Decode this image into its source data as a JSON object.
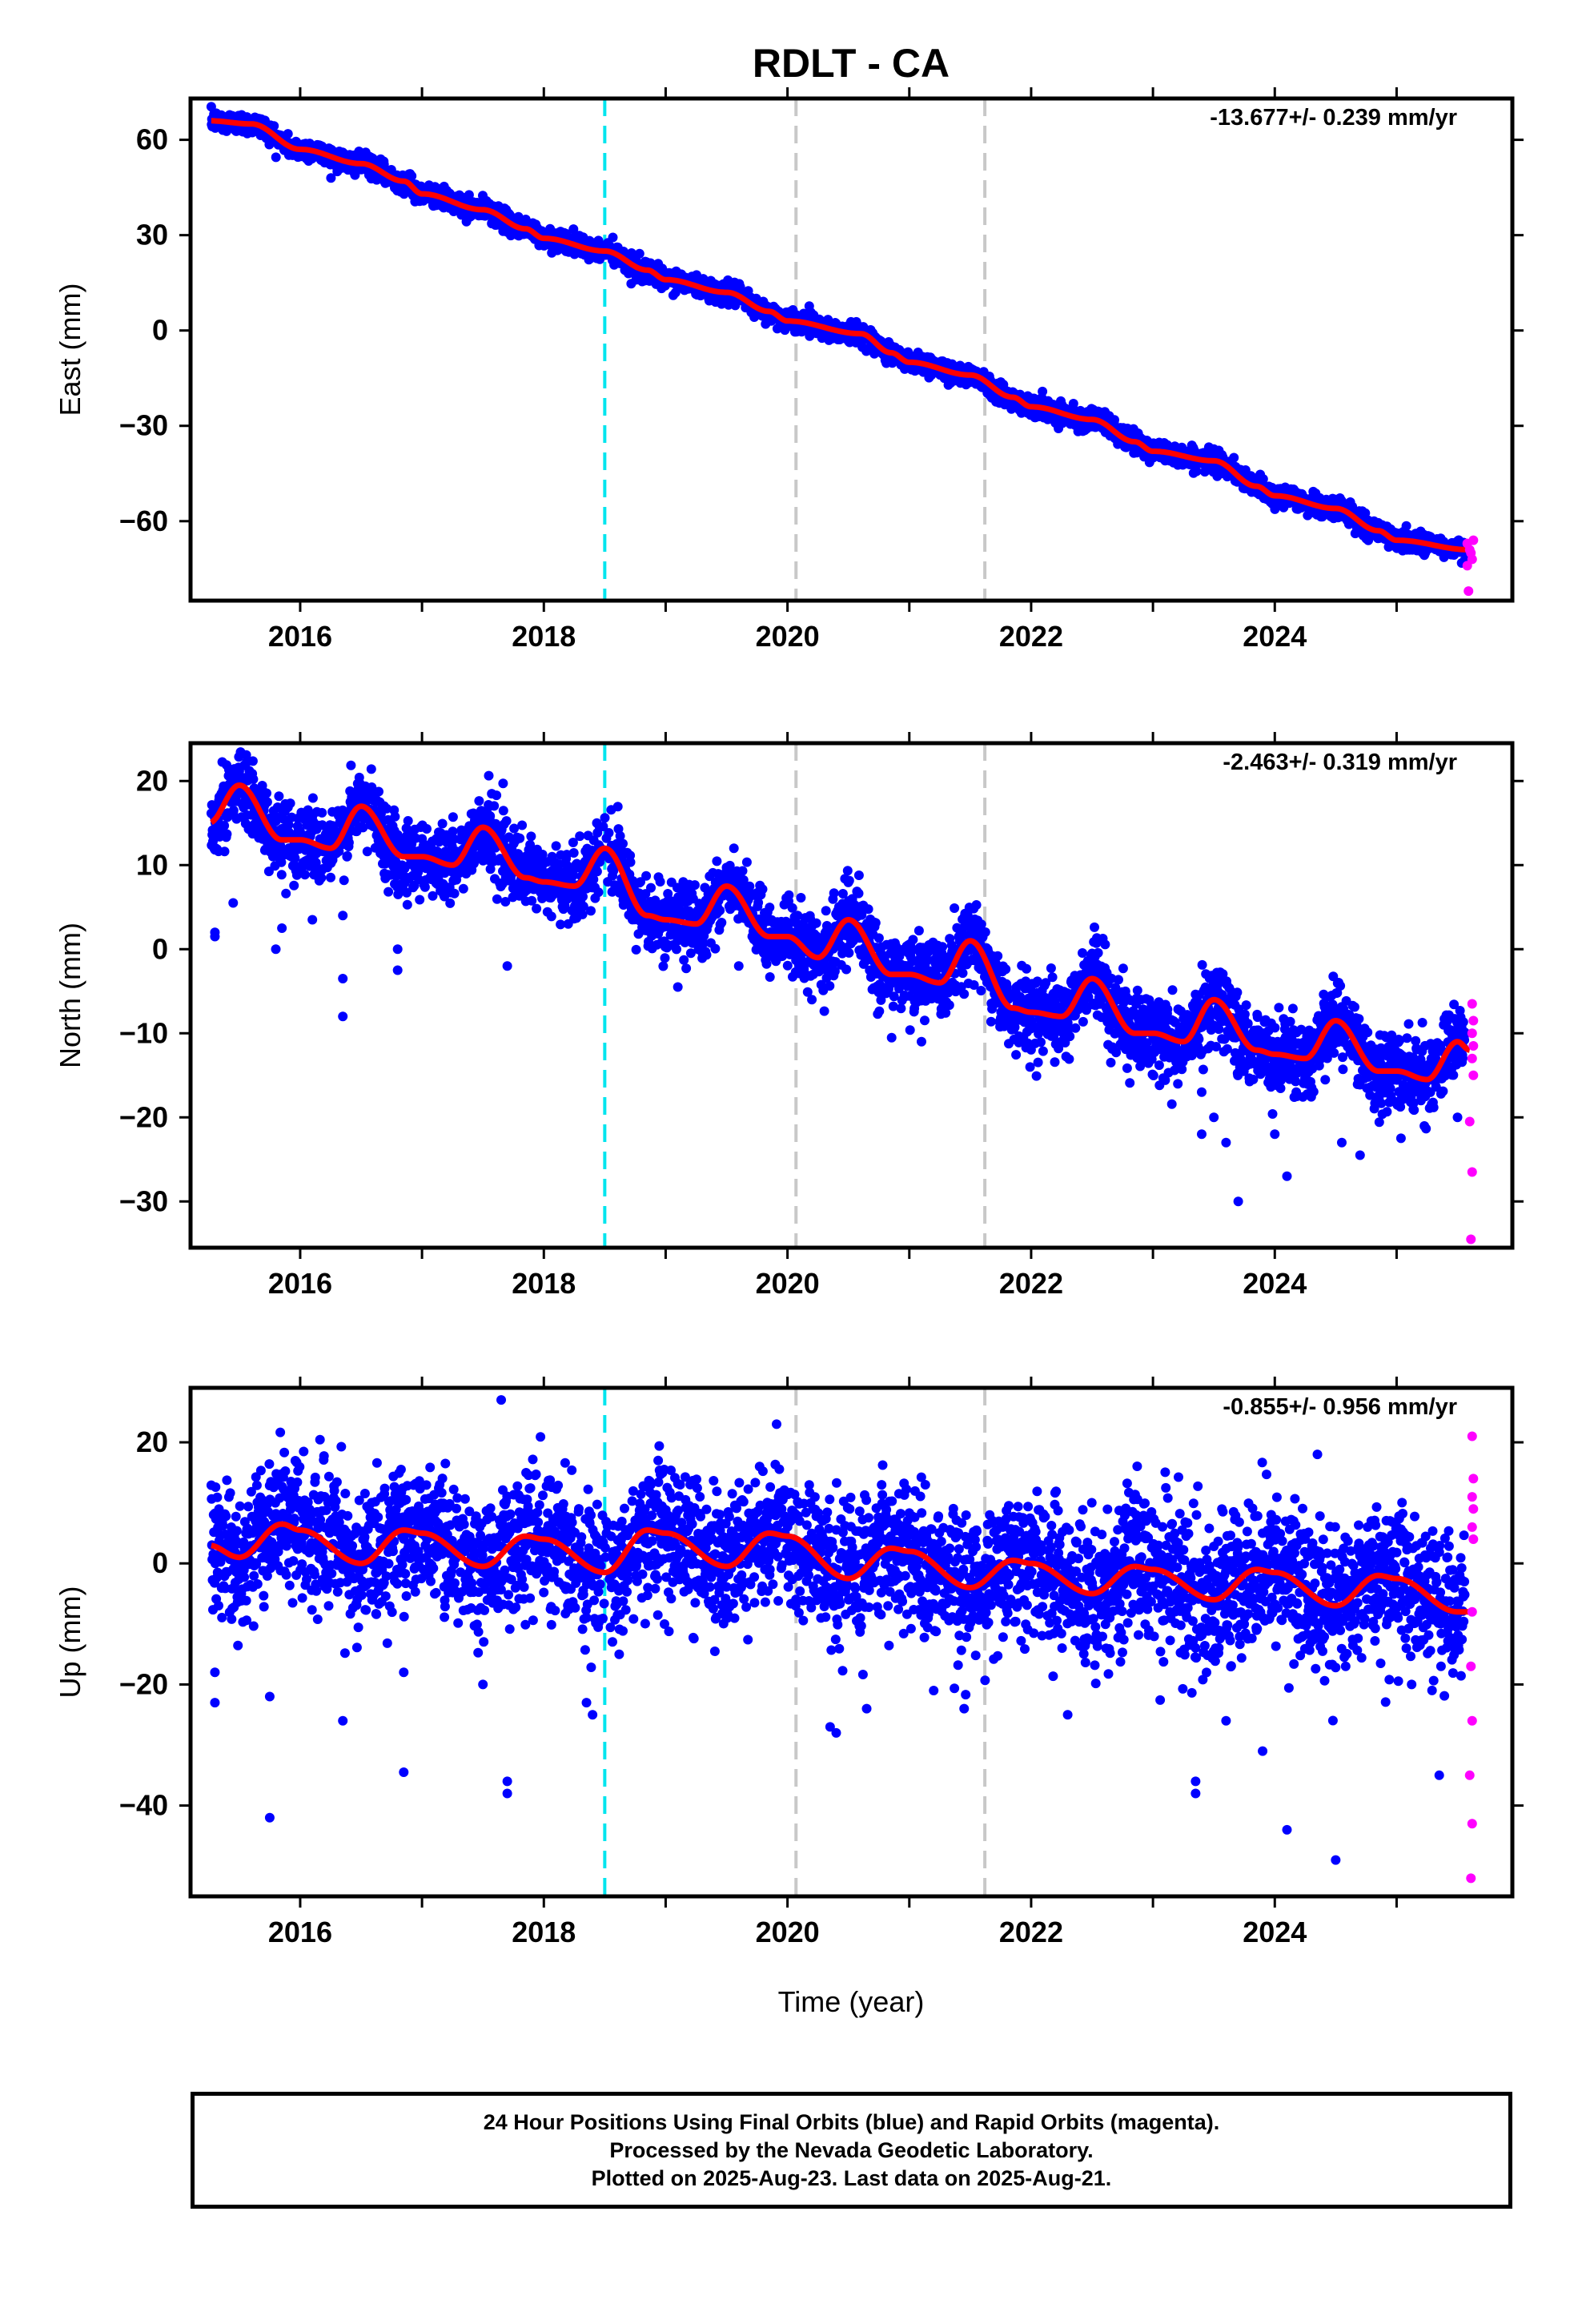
{
  "title": "RDLT - CA",
  "colors": {
    "final_orbits": "#0000ff",
    "rapid_orbits": "#ff00ff",
    "model_fit": "#ff0000",
    "antenna_change_line": "#00e5ee",
    "event_line": "#c8c8c8"
  },
  "x_axis": {
    "label": "Time (year)",
    "range": [
      2015.1,
      2025.95
    ],
    "ticks": [
      "2016",
      "2018",
      "2020",
      "2022",
      "2024"
    ],
    "tick_values": [
      2016,
      2018,
      2020,
      2022,
      2024
    ]
  },
  "vertical_lines": [
    {
      "x": 2018.5,
      "style": "cyan-dashed"
    },
    {
      "x": 2020.07,
      "style": "gray-dashed"
    },
    {
      "x": 2021.62,
      "style": "gray-dashed"
    }
  ],
  "chart_data": [
    {
      "type": "scatter",
      "panel": "east",
      "ylabel": "East (mm)",
      "ylim": [
        -85,
        73
      ],
      "yticks": [
        60,
        30,
        0,
        -30,
        -60
      ],
      "ytick_labels": [
        "60",
        "30",
        "0",
        "−30",
        "−60"
      ],
      "annotation": "-13.677+/- 0.239 mm/yr",
      "trend_rate": -13.677,
      "model_points": [
        [
          2015.25,
          66
        ],
        [
          2015.6,
          65
        ],
        [
          2016.0,
          57
        ],
        [
          2016.5,
          52.5
        ],
        [
          2016.85,
          47
        ],
        [
          2017.0,
          43
        ],
        [
          2017.5,
          38
        ],
        [
          2017.85,
          32
        ],
        [
          2018.0,
          29
        ],
        [
          2018.5,
          25
        ],
        [
          2018.85,
          19
        ],
        [
          2019.0,
          16
        ],
        [
          2019.5,
          12
        ],
        [
          2019.85,
          6
        ],
        [
          2020.0,
          3
        ],
        [
          2020.6,
          -1
        ],
        [
          2020.85,
          -7
        ],
        [
          2021.0,
          -10
        ],
        [
          2021.5,
          -14
        ],
        [
          2021.85,
          -21
        ],
        [
          2022.0,
          -24
        ],
        [
          2022.5,
          -28
        ],
        [
          2022.85,
          -35
        ],
        [
          2023.0,
          -38
        ],
        [
          2023.5,
          -41
        ],
        [
          2023.85,
          -49
        ],
        [
          2024.0,
          -52
        ],
        [
          2024.5,
          -56
        ],
        [
          2024.85,
          -63
        ],
        [
          2025.0,
          -66
        ],
        [
          2025.6,
          -69
        ]
      ],
      "scatter_noise": 1.6,
      "outliers": [],
      "rapid_points": [
        [
          2025.58,
          -67
        ],
        [
          2025.6,
          -69
        ],
        [
          2025.62,
          -72
        ],
        [
          2025.58,
          -74
        ],
        [
          2025.61,
          -70
        ],
        [
          2025.63,
          -66
        ],
        [
          2025.59,
          -82
        ]
      ]
    },
    {
      "type": "scatter",
      "panel": "north",
      "ylabel": "North (mm)",
      "ylim": [
        -35.5,
        24.5
      ],
      "yticks": [
        20,
        10,
        0,
        -10,
        -20,
        -30
      ],
      "ytick_labels": [
        "20",
        "10",
        "0",
        "−10",
        "−20",
        "−30"
      ],
      "annotation": "-2.463+/- 0.319 mm/yr",
      "trend_rate": -2.463,
      "model_points": [
        [
          2015.25,
          15
        ],
        [
          2015.5,
          19.5
        ],
        [
          2015.85,
          13
        ],
        [
          2016.0,
          13
        ],
        [
          2016.25,
          12
        ],
        [
          2016.5,
          17
        ],
        [
          2016.85,
          11
        ],
        [
          2017.0,
          11
        ],
        [
          2017.25,
          10
        ],
        [
          2017.5,
          14.5
        ],
        [
          2017.85,
          8.5
        ],
        [
          2018.0,
          8
        ],
        [
          2018.25,
          7.5
        ],
        [
          2018.5,
          12
        ],
        [
          2018.85,
          4
        ],
        [
          2019.0,
          3.5
        ],
        [
          2019.25,
          3
        ],
        [
          2019.5,
          7.5
        ],
        [
          2019.85,
          1.5
        ],
        [
          2020.0,
          1.5
        ],
        [
          2020.25,
          -1
        ],
        [
          2020.5,
          3.5
        ],
        [
          2020.85,
          -3
        ],
        [
          2021.0,
          -3
        ],
        [
          2021.25,
          -4
        ],
        [
          2021.5,
          1
        ],
        [
          2021.85,
          -7
        ],
        [
          2022.0,
          -7.5
        ],
        [
          2022.25,
          -8
        ],
        [
          2022.5,
          -3.5
        ],
        [
          2022.85,
          -10
        ],
        [
          2023.0,
          -10
        ],
        [
          2023.25,
          -11
        ],
        [
          2023.5,
          -6
        ],
        [
          2023.85,
          -12
        ],
        [
          2024.0,
          -12.5
        ],
        [
          2024.25,
          -13
        ],
        [
          2024.5,
          -8.5
        ],
        [
          2024.85,
          -14.5
        ],
        [
          2025.0,
          -14.5
        ],
        [
          2025.25,
          -15.5
        ],
        [
          2025.5,
          -11
        ],
        [
          2025.6,
          -12
        ]
      ],
      "scatter_noise": 2.2,
      "outliers": [
        [
          2015.3,
          2
        ],
        [
          2015.3,
          1.5
        ],
        [
          2015.45,
          5.5
        ],
        [
          2015.8,
          0
        ],
        [
          2015.85,
          2.5
        ],
        [
          2016.1,
          3.5
        ],
        [
          2016.35,
          4
        ],
        [
          2016.35,
          -3.5
        ],
        [
          2016.35,
          -8
        ],
        [
          2016.8,
          0
        ],
        [
          2016.8,
          -2.5
        ],
        [
          2017.7,
          -2
        ],
        [
          2018.2,
          3
        ],
        [
          2019.1,
          -4.5
        ],
        [
          2019.6,
          -2
        ],
        [
          2020.2,
          -6
        ],
        [
          2021.1,
          -11
        ],
        [
          2023.4,
          -17
        ],
        [
          2023.4,
          -22
        ],
        [
          2023.5,
          -20
        ],
        [
          2023.7,
          -30
        ],
        [
          2023.6,
          -23
        ],
        [
          2024.0,
          -22
        ],
        [
          2024.1,
          -27
        ],
        [
          2024.55,
          -23
        ],
        [
          2024.7,
          -24.5
        ],
        [
          2025.2,
          -18
        ],
        [
          2025.5,
          -20
        ]
      ],
      "rapid_points": [
        [
          2025.62,
          -6.5
        ],
        [
          2025.63,
          -8.5
        ],
        [
          2025.62,
          -10
        ],
        [
          2025.63,
          -11.5
        ],
        [
          2025.62,
          -13
        ],
        [
          2025.63,
          -15
        ],
        [
          2025.6,
          -20.5
        ],
        [
          2025.62,
          -26.5
        ],
        [
          2025.61,
          -34.5
        ]
      ]
    },
    {
      "type": "scatter",
      "panel": "up",
      "ylabel": "Up (mm)",
      "ylim": [
        -55,
        29
      ],
      "yticks": [
        20,
        0,
        -20,
        -40
      ],
      "ytick_labels": [
        "20",
        "0",
        "−20",
        "−40"
      ],
      "annotation": "-0.855+/- 0.956 mm/yr",
      "trend_rate": -0.855,
      "model_points": [
        [
          2015.25,
          3
        ],
        [
          2015.5,
          1
        ],
        [
          2015.85,
          6.5
        ],
        [
          2016.0,
          5.5
        ],
        [
          2016.5,
          0
        ],
        [
          2016.85,
          5.5
        ],
        [
          2017.0,
          5
        ],
        [
          2017.5,
          -0.5
        ],
        [
          2017.85,
          4.5
        ],
        [
          2018.0,
          4
        ],
        [
          2018.5,
          -1.5
        ],
        [
          2018.85,
          5.5
        ],
        [
          2019.0,
          5
        ],
        [
          2019.5,
          -0.5
        ],
        [
          2019.85,
          5
        ],
        [
          2020.0,
          4.5
        ],
        [
          2020.5,
          -2.5
        ],
        [
          2020.85,
          2.5
        ],
        [
          2021.0,
          2
        ],
        [
          2021.5,
          -4
        ],
        [
          2021.85,
          0.5
        ],
        [
          2022.0,
          0
        ],
        [
          2022.5,
          -5
        ],
        [
          2022.85,
          -0.5
        ],
        [
          2023.0,
          -1
        ],
        [
          2023.5,
          -6
        ],
        [
          2023.85,
          -1
        ],
        [
          2024.0,
          -1.5
        ],
        [
          2024.5,
          -7
        ],
        [
          2024.85,
          -2
        ],
        [
          2025.0,
          -2.5
        ],
        [
          2025.5,
          -8
        ],
        [
          2025.6,
          -8
        ]
      ],
      "scatter_noise": 5.5,
      "outliers": [
        [
          2015.3,
          -18
        ],
        [
          2015.3,
          -23
        ],
        [
          2015.75,
          -42
        ],
        [
          2015.75,
          -22
        ],
        [
          2016.35,
          -26
        ],
        [
          2016.85,
          -34.5
        ],
        [
          2016.85,
          -18
        ],
        [
          2017.5,
          -20
        ],
        [
          2017.7,
          -38
        ],
        [
          2017.7,
          -36
        ],
        [
          2017.65,
          27
        ],
        [
          2018.35,
          -23
        ],
        [
          2018.4,
          -25
        ],
        [
          2020.35,
          -27
        ],
        [
          2020.4,
          -28
        ],
        [
          2020.65,
          -24
        ],
        [
          2021.2,
          -21
        ],
        [
          2021.45,
          -24
        ],
        [
          2022.3,
          -25
        ],
        [
          2023.35,
          -38
        ],
        [
          2023.35,
          -36
        ],
        [
          2023.6,
          -26
        ],
        [
          2023.9,
          -31
        ],
        [
          2024.1,
          -44
        ],
        [
          2024.5,
          -49
        ],
        [
          2025.35,
          -35
        ],
        [
          2024.35,
          18
        ]
      ],
      "rapid_points": [
        [
          2025.62,
          21
        ],
        [
          2025.63,
          14
        ],
        [
          2025.62,
          11
        ],
        [
          2025.63,
          9
        ],
        [
          2025.62,
          6
        ],
        [
          2025.63,
          4
        ],
        [
          2025.62,
          -8
        ],
        [
          2025.61,
          -17
        ],
        [
          2025.62,
          -26
        ],
        [
          2025.6,
          -35
        ],
        [
          2025.62,
          -43
        ],
        [
          2025.61,
          -52
        ]
      ]
    }
  ],
  "footer": {
    "line1": "24 Hour Positions Using Final Orbits (blue) and Rapid Orbits (magenta).",
    "line2": "Processed by the Nevada Geodetic Laboratory.",
    "line3": "Plotted on 2025-Aug-23. Last data on 2025-Aug-21."
  }
}
